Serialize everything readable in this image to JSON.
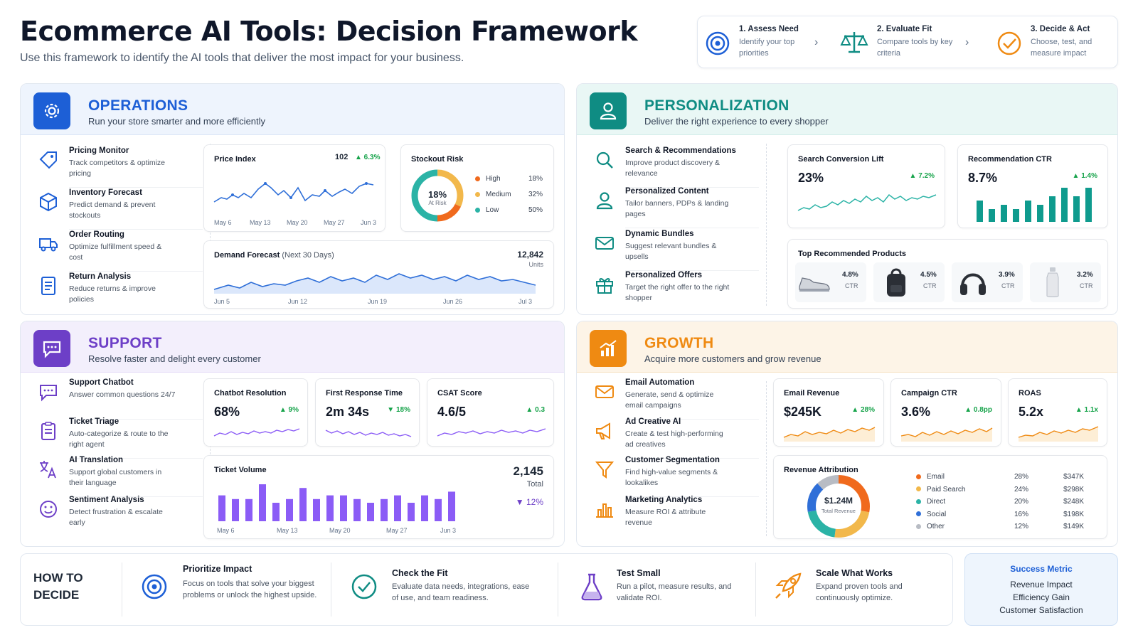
{
  "header": {
    "title": "Ecommerce AI Tools: Decision Framework",
    "subtitle": "Use this framework to identify the AI tools that deliver the most impact for your business."
  },
  "steps": [
    {
      "title": "1. Assess Need",
      "desc": "Identify your top priorities",
      "icon": "target-icon"
    },
    {
      "title": "2. Evaluate Fit",
      "desc": "Compare tools by key criteria",
      "icon": "scale-icon"
    },
    {
      "title": "3. Decide & Act",
      "desc": "Choose, test, and measure impact",
      "icon": "check-circle-icon"
    }
  ],
  "colors": {
    "operations": "#1d5fd6",
    "personalization": "#0f8c83",
    "support": "#6d3fc7",
    "growth": "#ef8a12",
    "up": "#16a34a"
  },
  "operations": {
    "title": "OPERATIONS",
    "subtitle": "Run your store smarter and more efficiently",
    "tools": [
      {
        "title": "Pricing Monitor",
        "desc": "Track competitors & optimize pricing",
        "icon": "tag-icon"
      },
      {
        "title": "Inventory Forecast",
        "desc": "Predict demand & prevent stockouts",
        "icon": "box-icon"
      },
      {
        "title": "Order Routing",
        "desc": "Optimize fulfillment speed & cost",
        "icon": "truck-icon"
      },
      {
        "title": "Return Analysis",
        "desc": "Reduce returns & improve policies",
        "icon": "document-icon"
      }
    ],
    "price_index": {
      "title": "Price Index",
      "value": "102",
      "delta": "▲ 6.3%",
      "ticks": [
        "May 6",
        "May 13",
        "May 20",
        "May 27",
        "Jun 3"
      ]
    },
    "stockout": {
      "title": "Stockout Risk",
      "center_value": "18%",
      "center_label": "At Risk",
      "legend": [
        {
          "label": "High",
          "value": "18%",
          "color": "#f06a1d"
        },
        {
          "label": "Medium",
          "value": "32%",
          "color": "#f2b84b"
        },
        {
          "label": "Low",
          "value": "50%",
          "color": "#2bb3a6"
        }
      ]
    },
    "demand": {
      "title": "Demand Forecast",
      "title_note": "(Next 30 Days)",
      "value": "12,842",
      "unit": "Units",
      "ticks": [
        "Jun 5",
        "Jun 12",
        "Jun 19",
        "Jun 26",
        "Jul 3"
      ]
    }
  },
  "personalization": {
    "title": "PERSONALIZATION",
    "subtitle": "Deliver the right experience to every shopper",
    "tools": [
      {
        "title": "Search & Recommendations",
        "desc": "Improve product discovery & relevance",
        "icon": "search-icon"
      },
      {
        "title": "Personalized Content",
        "desc": "Tailor banners, PDPs & landing pages",
        "icon": "user-icon"
      },
      {
        "title": "Dynamic Bundles",
        "desc": "Suggest relevant bundles & upsells",
        "icon": "mail-icon"
      },
      {
        "title": "Personalized Offers",
        "desc": "Target the right offer to the right shopper",
        "icon": "gift-icon"
      }
    ],
    "search_lift": {
      "title": "Search Conversion Lift",
      "value": "23%",
      "delta": "▲ 7.2%"
    },
    "rec_ctr": {
      "title": "Recommendation CTR",
      "value": "8.7%",
      "delta": "▲ 1.4%",
      "bars": [
        5,
        3,
        4,
        3,
        5,
        4,
        6,
        8,
        6,
        8
      ]
    },
    "top_products": {
      "title": "Top Recommended Products",
      "items": [
        {
          "ctr": "4.8%",
          "label": "CTR",
          "icon": "sneaker-icon"
        },
        {
          "ctr": "4.5%",
          "label": "CTR",
          "icon": "backpack-icon"
        },
        {
          "ctr": "3.9%",
          "label": "CTR",
          "icon": "headphones-icon"
        },
        {
          "ctr": "3.2%",
          "label": "CTR",
          "icon": "bottle-icon"
        }
      ]
    }
  },
  "support": {
    "title": "SUPPORT",
    "subtitle": "Resolve faster and delight every customer",
    "tools": [
      {
        "title": "Support Chatbot",
        "desc": "Answer common questions 24/7",
        "icon": "chat-icon"
      },
      {
        "title": "Ticket Triage",
        "desc": "Auto-categorize & route to the right agent",
        "icon": "clipboard-icon"
      },
      {
        "title": "AI Translation",
        "desc": "Support global customers in their language",
        "icon": "translate-icon"
      },
      {
        "title": "Sentiment Analysis",
        "desc": "Detect frustration & escalate early",
        "icon": "smile-icon"
      }
    ],
    "chatbot_resolution": {
      "title": "Chatbot Resolution",
      "value": "68%",
      "delta": "▲ 9%"
    },
    "first_response": {
      "title": "First Response Time",
      "value": "2m 34s",
      "delta": "▼ 18%"
    },
    "csat": {
      "title": "CSAT Score",
      "value": "4.6/5",
      "delta": "▲ 0.3"
    },
    "ticket_volume": {
      "title": "Ticket Volume",
      "value": "2,145",
      "unit": "Total",
      "delta": "▼ 12%",
      "ticks": [
        "May 6",
        "May 13",
        "May 20",
        "May 27",
        "Jun 3"
      ],
      "bars": [
        7,
        6,
        6,
        10,
        5,
        6,
        9,
        6,
        7,
        7,
        6,
        5,
        6,
        7,
        5,
        7,
        6,
        8
      ]
    }
  },
  "growth": {
    "title": "GROWTH",
    "subtitle": "Acquire more customers and grow revenue",
    "tools": [
      {
        "title": "Email Automation",
        "desc": "Generate, send & optimize email campaigns",
        "icon": "envelope-icon"
      },
      {
        "title": "Ad Creative AI",
        "desc": "Create & test high-performing ad creatives",
        "icon": "megaphone-icon"
      },
      {
        "title": "Customer Segmentation",
        "desc": "Find high-value segments & lookalikes",
        "icon": "filter-icon"
      },
      {
        "title": "Marketing Analytics",
        "desc": "Measure ROI & attribute revenue",
        "icon": "bar-chart-icon"
      }
    ],
    "email_revenue": {
      "title": "Email Revenue",
      "value": "$245K",
      "delta": "▲ 28%"
    },
    "campaign_ctr": {
      "title": "Campaign CTR",
      "value": "3.6%",
      "delta": "▲ 0.8pp"
    },
    "roas": {
      "title": "ROAS",
      "value": "5.2x",
      "delta": "▲ 1.1x"
    },
    "revenue_attribution": {
      "title": "Revenue Attribution",
      "center_value": "$1.24M",
      "center_label": "Total Revenue",
      "rows": [
        {
          "label": "Email",
          "pct": "28%",
          "amount": "$347K",
          "share": 28,
          "color": "#f06a1d"
        },
        {
          "label": "Paid Search",
          "pct": "24%",
          "amount": "$298K",
          "share": 24,
          "color": "#f2b84b"
        },
        {
          "label": "Direct",
          "pct": "20%",
          "amount": "$248K",
          "share": 20,
          "color": "#2bb3a6"
        },
        {
          "label": "Social",
          "pct": "16%",
          "amount": "$198K",
          "share": 16,
          "color": "#2f6fd8"
        },
        {
          "label": "Other",
          "pct": "12%",
          "amount": "$149K",
          "share": 12,
          "color": "#b8bcc4"
        }
      ]
    }
  },
  "footer": {
    "heading_line1": "HOW TO",
    "heading_line2": "DECIDE",
    "items": [
      {
        "title": "Prioritize Impact",
        "desc": "Focus on tools that solve your biggest problems or unlock the highest upside.",
        "icon": "target-icon"
      },
      {
        "title": "Check the Fit",
        "desc": "Evaluate data needs, integrations, ease of use, and team readiness.",
        "icon": "check-circle-icon"
      },
      {
        "title": "Test Small",
        "desc": "Run a pilot, measure results, and validate ROI.",
        "icon": "flask-icon"
      },
      {
        "title": "Scale What Works",
        "desc": "Expand proven tools and continuously optimize.",
        "icon": "rocket-icon"
      }
    ],
    "success": {
      "title": "Success Metric",
      "lines": [
        "Revenue Impact",
        "Efficiency Gain",
        "Customer Satisfaction"
      ]
    }
  }
}
